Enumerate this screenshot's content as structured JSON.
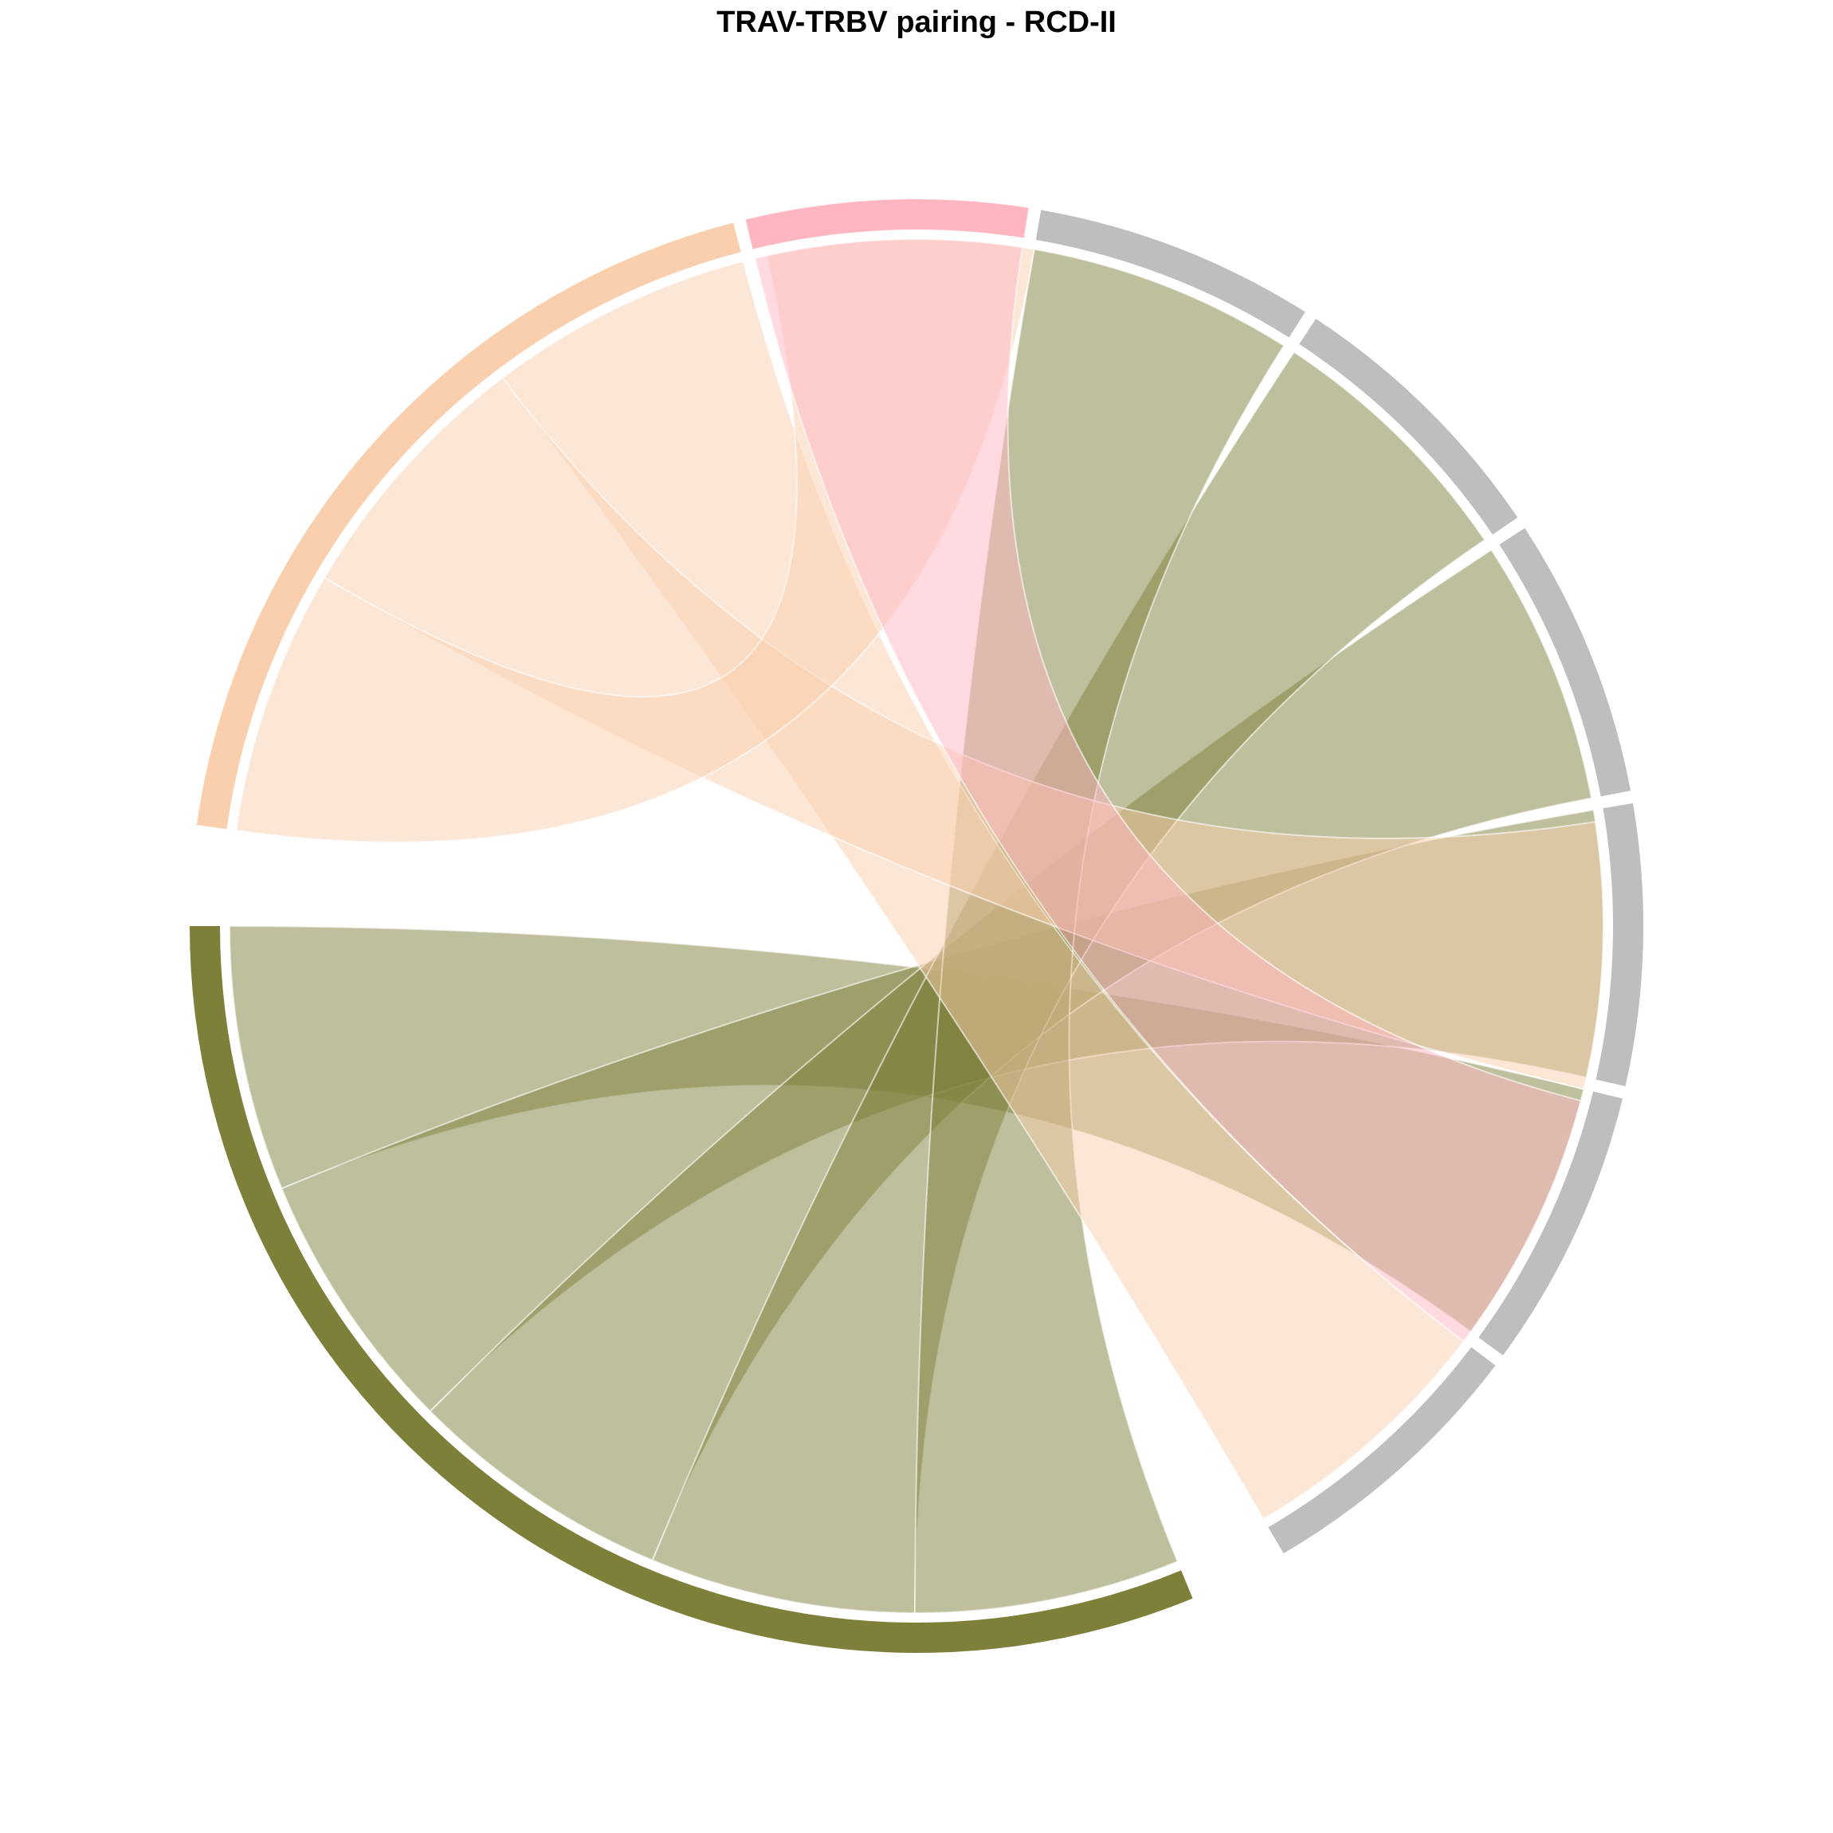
{
  "chart_data": {
    "type": "chord",
    "title": "TRAV-TRBV pairing - RCD-II",
    "sectors": [
      {
        "id": "s0",
        "label": "",
        "value": 5,
        "color": "#7E803A"
      },
      {
        "id": "s1",
        "label": "",
        "value": 1,
        "color": "#BEBEBE"
      },
      {
        "id": "s2",
        "label": "",
        "value": 1,
        "color": "#BEBEBE"
      },
      {
        "id": "s3",
        "label": "",
        "value": 1,
        "color": "#BEBEBE"
      },
      {
        "id": "s4",
        "label": "",
        "value": 1,
        "color": "#BEBEBE"
      },
      {
        "id": "s5",
        "label": "",
        "value": 1,
        "color": "#BEBEBE"
      },
      {
        "id": "s6",
        "label": "",
        "value": 1,
        "color": "#BEBEBE"
      },
      {
        "id": "s7",
        "label": "",
        "value": 1,
        "color": "#FFB6C1"
      },
      {
        "id": "s8",
        "label": "",
        "value": 3,
        "color": "#FACFAE"
      }
    ],
    "links": [
      {
        "from": "s0",
        "to": "s2",
        "value": 1,
        "color": "#7E803A"
      },
      {
        "from": "s0",
        "to": "s3",
        "value": 1,
        "color": "#7E803A"
      },
      {
        "from": "s0",
        "to": "s4",
        "value": 1,
        "color": "#7E803A"
      },
      {
        "from": "s0",
        "to": "s5",
        "value": 1,
        "color": "#7E803A"
      },
      {
        "from": "s0",
        "to": "s6",
        "value": 1,
        "color": "#7E803A"
      },
      {
        "from": "s8",
        "to": "s1",
        "value": 1,
        "color": "#FACFAE"
      },
      {
        "from": "s8",
        "to": "s2",
        "value": 1,
        "color": "#FACFAE"
      },
      {
        "from": "s8",
        "to": "s6",
        "value": 1,
        "color": "#FACFAE"
      },
      {
        "from": "s7",
        "to": "s1",
        "value": 1,
        "color": "#FFB6C1"
      }
    ]
  }
}
